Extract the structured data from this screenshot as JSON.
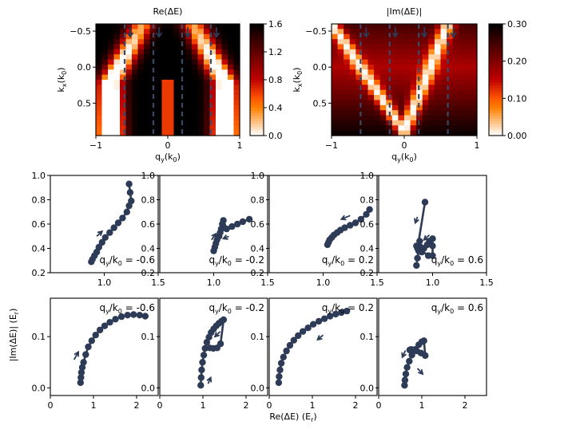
{
  "colors": {
    "series": "#2d3b57",
    "cut": "#3a4a6a"
  },
  "chart_data": [
    {
      "id": "heat-re",
      "type": "heatmap",
      "colormap": "gist_heat_r",
      "title": "Re(ΔE)",
      "xlabel_main": "q",
      "xlabel_sub": "y",
      "xlabel_unit_main": "(k",
      "xlabel_unit_sub": "0",
      "xlabel_close": ")",
      "ylabel_main": "k",
      "ylabel_sub": "x",
      "ylabel_unit_main": "(k",
      "ylabel_unit_sub": "0",
      "ylabel_close": ")",
      "xlim": [
        -1,
        1
      ],
      "ylim": [
        -0.6,
        0.95
      ],
      "y_inverted": true,
      "xticks": [
        -1,
        0,
        1
      ],
      "xtick_labels": [
        "−1",
        "0",
        "1"
      ],
      "yticks": [
        -0.5,
        0.0,
        0.5
      ],
      "ytick_labels": [
        "−0.5",
        "0.0",
        "0.5"
      ],
      "colorbar": {
        "min": 0,
        "max": 1.6,
        "ticks": [
          0,
          0.4,
          0.8,
          1.2,
          1.6
        ],
        "tick_labels": [
          "0.0",
          "0.4",
          "0.8",
          "1.2",
          "1.6"
        ]
      },
      "cut_lines_qy": [
        -0.6,
        -0.2,
        0.2,
        0.6
      ]
    },
    {
      "id": "heat-im",
      "type": "heatmap",
      "colormap": "gist_heat_r",
      "title": "|Im(ΔE)|",
      "xlabel_main": "q",
      "xlabel_sub": "y",
      "xlabel_unit_main": "(k",
      "xlabel_unit_sub": "0",
      "xlabel_close": ")",
      "ylabel_main": "k",
      "ylabel_sub": "x",
      "ylabel_unit_main": "(k",
      "ylabel_unit_sub": "0",
      "ylabel_close": ")",
      "xlim": [
        -1,
        1
      ],
      "ylim": [
        -0.6,
        0.95
      ],
      "y_inverted": true,
      "xticks": [
        -1,
        0,
        1
      ],
      "xtick_labels": [
        "−1",
        "0",
        "1"
      ],
      "yticks": [
        -0.5,
        0.0,
        0.5
      ],
      "ytick_labels": [
        "−0.5",
        "0.0",
        "0.5"
      ],
      "colorbar": {
        "min": 0,
        "max": 0.3,
        "ticks": [
          0,
          0.1,
          0.2,
          0.3
        ],
        "tick_labels": [
          "0.00",
          "0.10",
          "0.20",
          "0.30"
        ]
      },
      "cut_lines_qy": [
        -0.6,
        -0.2,
        0.2,
        0.6
      ]
    },
    {
      "id": "top-1",
      "type": "line",
      "row": "top",
      "xlim": [
        0.5,
        1.5
      ],
      "ylim": [
        0.2,
        1.0
      ],
      "xticks": [
        1.0,
        1.5
      ],
      "xtick_labels": [
        "1.0",
        "1.5"
      ],
      "yticks": [
        0.2,
        0.4,
        0.6,
        0.8,
        1.0
      ],
      "ytick_labels": [
        "0.2",
        "0.4",
        "0.6",
        "0.8",
        "1.0"
      ],
      "annotation_main": "q",
      "annotation_sub": "y",
      "annotation_mid": "/k",
      "annotation_sub2": "0",
      "annotation_value": " = -0.6",
      "x": [
        0.88,
        0.89,
        0.91,
        0.93,
        0.95,
        0.98,
        1.01,
        1.05,
        1.09,
        1.13,
        1.17,
        1.21,
        1.23,
        1.25,
        1.24,
        1.23
      ],
      "y": [
        0.29,
        0.31,
        0.34,
        0.37,
        0.41,
        0.45,
        0.49,
        0.53,
        0.57,
        0.61,
        0.65,
        0.7,
        0.75,
        0.79,
        0.86,
        0.93
      ],
      "arrows": [
        [
          0.93,
          0.5,
          0.98,
          0.54
        ]
      ]
    },
    {
      "id": "top-2",
      "type": "line",
      "row": "top",
      "xlim": [
        0.5,
        1.5
      ],
      "ylim": [
        0.2,
        1.0
      ],
      "xticks": [
        1.0,
        1.5
      ],
      "xtick_labels": [
        "1.0",
        "1.5"
      ],
      "yticks": [
        0.2,
        0.4,
        0.6,
        0.8,
        1.0
      ],
      "ytick_labels": [
        "0.2",
        "0.4",
        "0.6",
        "0.8",
        "1.0"
      ],
      "annotation_main": "q",
      "annotation_sub": "y",
      "annotation_mid": "/k",
      "annotation_sub2": "0",
      "annotation_value": " = -0.2",
      "x": [
        1.0,
        1.01,
        1.02,
        1.03,
        1.05,
        1.06,
        1.07,
        1.08,
        1.09,
        1.12,
        1.17,
        1.22,
        1.27,
        1.33
      ],
      "y": [
        0.38,
        0.41,
        0.44,
        0.47,
        0.5,
        0.53,
        0.56,
        0.6,
        0.63,
        0.56,
        0.58,
        0.6,
        0.62,
        0.64
      ],
      "arrows": [
        [
          0.98,
          0.47,
          1.02,
          0.52
        ],
        [
          1.14,
          0.5,
          1.09,
          0.48
        ]
      ]
    },
    {
      "id": "top-3",
      "type": "line",
      "row": "top",
      "xlim": [
        0.5,
        1.5
      ],
      "ylim": [
        0.2,
        1.0
      ],
      "xticks": [
        1.0,
        1.5
      ],
      "xtick_labels": [
        "1.0",
        "1.5"
      ],
      "yticks": [
        0.2,
        0.4,
        0.6,
        0.8,
        1.0
      ],
      "ytick_labels": [
        "0.2",
        "0.4",
        "0.6",
        "0.8",
        "1.0"
      ],
      "annotation_main": "q",
      "annotation_sub": "y",
      "annotation_mid": "/k",
      "annotation_sub2": "0",
      "annotation_value": " = 0.2",
      "x": [
        1.04,
        1.05,
        1.06,
        1.08,
        1.1,
        1.13,
        1.16,
        1.2,
        1.25,
        1.3,
        1.35,
        1.4,
        1.43
      ],
      "y": [
        0.43,
        0.45,
        0.47,
        0.49,
        0.51,
        0.53,
        0.55,
        0.57,
        0.59,
        0.61,
        0.64,
        0.68,
        0.72
      ],
      "arrows": [
        [
          1.25,
          0.67,
          1.17,
          0.64
        ]
      ]
    },
    {
      "id": "top-4",
      "type": "line",
      "row": "top",
      "xlim": [
        0.5,
        1.5
      ],
      "ylim": [
        0.2,
        1.0
      ],
      "xticks": [
        1.0,
        1.5
      ],
      "xtick_labels": [
        "1.0",
        "1.5"
      ],
      "yticks": [
        0.2,
        0.4,
        0.6,
        0.8,
        1.0
      ],
      "ytick_labels": [
        "0.2",
        "0.4",
        "0.6",
        "0.8",
        "1.0"
      ],
      "annotation_main": "q",
      "annotation_sub": "y",
      "annotation_mid": "/k",
      "annotation_sub2": "0",
      "annotation_value": " = 0.6",
      "x": [
        0.85,
        0.86,
        0.87,
        0.89,
        0.9,
        0.92,
        0.95,
        0.97,
        1.0,
        1.0,
        1.0,
        0.96,
        0.9,
        0.88,
        0.85,
        0.86,
        0.93
      ],
      "y": [
        0.26,
        0.32,
        0.38,
        0.41,
        0.37,
        0.4,
        0.43,
        0.46,
        0.48,
        0.42,
        0.34,
        0.34,
        0.38,
        0.46,
        0.42,
        0.4,
        0.78
      ],
      "arrows": [
        [
          0.86,
          0.66,
          0.84,
          0.61
        ],
        [
          0.97,
          0.51,
          0.92,
          0.47
        ]
      ]
    },
    {
      "id": "bot-1",
      "type": "line",
      "row": "bottom",
      "xlim": [
        0,
        2.5
      ],
      "ylim": [
        -0.015,
        0.175
      ],
      "xticks": [
        0,
        1,
        2
      ],
      "xtick_labels": [
        "0",
        "1",
        "2"
      ],
      "yticks": [
        0.0,
        0.1
      ],
      "ytick_labels": [
        "0.0",
        "0.1"
      ],
      "annotation_main": "q",
      "annotation_sub": "y",
      "annotation_mid": "/k",
      "annotation_sub2": "0",
      "annotation_value": " = -0.6",
      "x": [
        0.7,
        0.71,
        0.72,
        0.74,
        0.77,
        0.82,
        0.88,
        0.96,
        1.05,
        1.15,
        1.26,
        1.38,
        1.51,
        1.65,
        1.79,
        1.93,
        2.07,
        2.2
      ],
      "y": [
        0.01,
        0.02,
        0.03,
        0.04,
        0.05,
        0.065,
        0.08,
        0.092,
        0.103,
        0.113,
        0.121,
        0.128,
        0.134,
        0.139,
        0.142,
        0.143,
        0.142,
        0.14
      ],
      "arrows": [
        [
          0.55,
          0.055,
          0.65,
          0.07
        ]
      ]
    },
    {
      "id": "bot-2",
      "type": "line",
      "row": "bottom",
      "xlim": [
        0,
        2.5
      ],
      "ylim": [
        -0.015,
        0.175
      ],
      "xticks": [
        0,
        1,
        2
      ],
      "xtick_labels": [
        "0",
        "1",
        "2"
      ],
      "yticks": [
        0.0,
        0.1
      ],
      "ytick_labels": [
        "0.0",
        "0.1"
      ],
      "annotation_main": "q",
      "annotation_sub": "y",
      "annotation_mid": "/k",
      "annotation_sub2": "0",
      "annotation_value": " = -0.2",
      "x": [
        0.95,
        0.96,
        0.97,
        0.99,
        1.02,
        1.05,
        1.09,
        1.14,
        1.19,
        1.25,
        1.31,
        1.37,
        1.43,
        1.48,
        1.41,
        1.33,
        1.24,
        1.16
      ],
      "y": [
        0.005,
        0.02,
        0.035,
        0.05,
        0.064,
        0.077,
        0.089,
        0.099,
        0.108,
        0.115,
        0.121,
        0.126,
        0.13,
        0.133,
        0.086,
        0.078,
        0.077,
        0.078
      ],
      "arrows": [
        [
          1.12,
          0.008,
          1.18,
          0.02
        ],
        [
          1.4,
          0.11,
          1.28,
          0.1
        ]
      ]
    },
    {
      "id": "bot-3",
      "type": "line",
      "row": "bottom",
      "xlim": [
        0,
        2.5
      ],
      "ylim": [
        -0.015,
        0.175
      ],
      "xticks": [
        0,
        1,
        2
      ],
      "xtick_labels": [
        "0",
        "1",
        "2"
      ],
      "yticks": [
        0.0,
        0.1
      ],
      "ytick_labels": [
        "0.0",
        "0.1"
      ],
      "annotation_main": "q",
      "annotation_sub": "y",
      "annotation_mid": "/k",
      "annotation_sub2": "0",
      "annotation_value": " = 0.2",
      "x": [
        0.22,
        0.23,
        0.25,
        0.28,
        0.33,
        0.4,
        0.48,
        0.57,
        0.67,
        0.78,
        0.9,
        1.02,
        1.15,
        1.28,
        1.41,
        1.54,
        1.67,
        1.8
      ],
      "y": [
        0.01,
        0.022,
        0.035,
        0.048,
        0.06,
        0.072,
        0.083,
        0.093,
        0.102,
        0.11,
        0.117,
        0.124,
        0.13,
        0.135,
        0.14,
        0.144,
        0.147,
        0.15
      ],
      "arrows": [
        [
          1.25,
          0.103,
          1.12,
          0.094
        ]
      ]
    },
    {
      "id": "bot-4",
      "type": "line",
      "row": "bottom",
      "xlim": [
        0,
        2.5
      ],
      "ylim": [
        -0.015,
        0.175
      ],
      "xticks": [
        0,
        1,
        2
      ],
      "xtick_labels": [
        "0",
        "1",
        "2"
      ],
      "yticks": [
        0.0,
        0.1
      ],
      "ytick_labels": [
        "0.0",
        "0.1"
      ],
      "annotation_main": "q",
      "annotation_sub": "y",
      "annotation_mid": "/k",
      "annotation_sub2": "0",
      "annotation_value": " = 0.6",
      "x": [
        0.6,
        0.61,
        0.63,
        0.66,
        0.71,
        0.77,
        0.85,
        0.93,
        1.0,
        1.05,
        1.08,
        0.98,
        0.88,
        0.8,
        0.75,
        0.72
      ],
      "y": [
        0.005,
        0.015,
        0.027,
        0.04,
        0.052,
        0.064,
        0.075,
        0.084,
        0.09,
        0.092,
        0.063,
        0.068,
        0.072,
        0.074,
        0.075,
        0.074
      ],
      "arrows": [
        [
          0.62,
          0.073,
          0.55,
          0.06
        ],
        [
          0.9,
          0.038,
          1.02,
          0.027
        ]
      ]
    }
  ],
  "figure": {
    "ylabel_main": "|Im(ΔE)| (E",
    "ylabel_sub": "r",
    "ylabel_close": ")",
    "xlabel_main": "Re(ΔE) (E",
    "xlabel_sub": "r",
    "xlabel_close": ")"
  }
}
